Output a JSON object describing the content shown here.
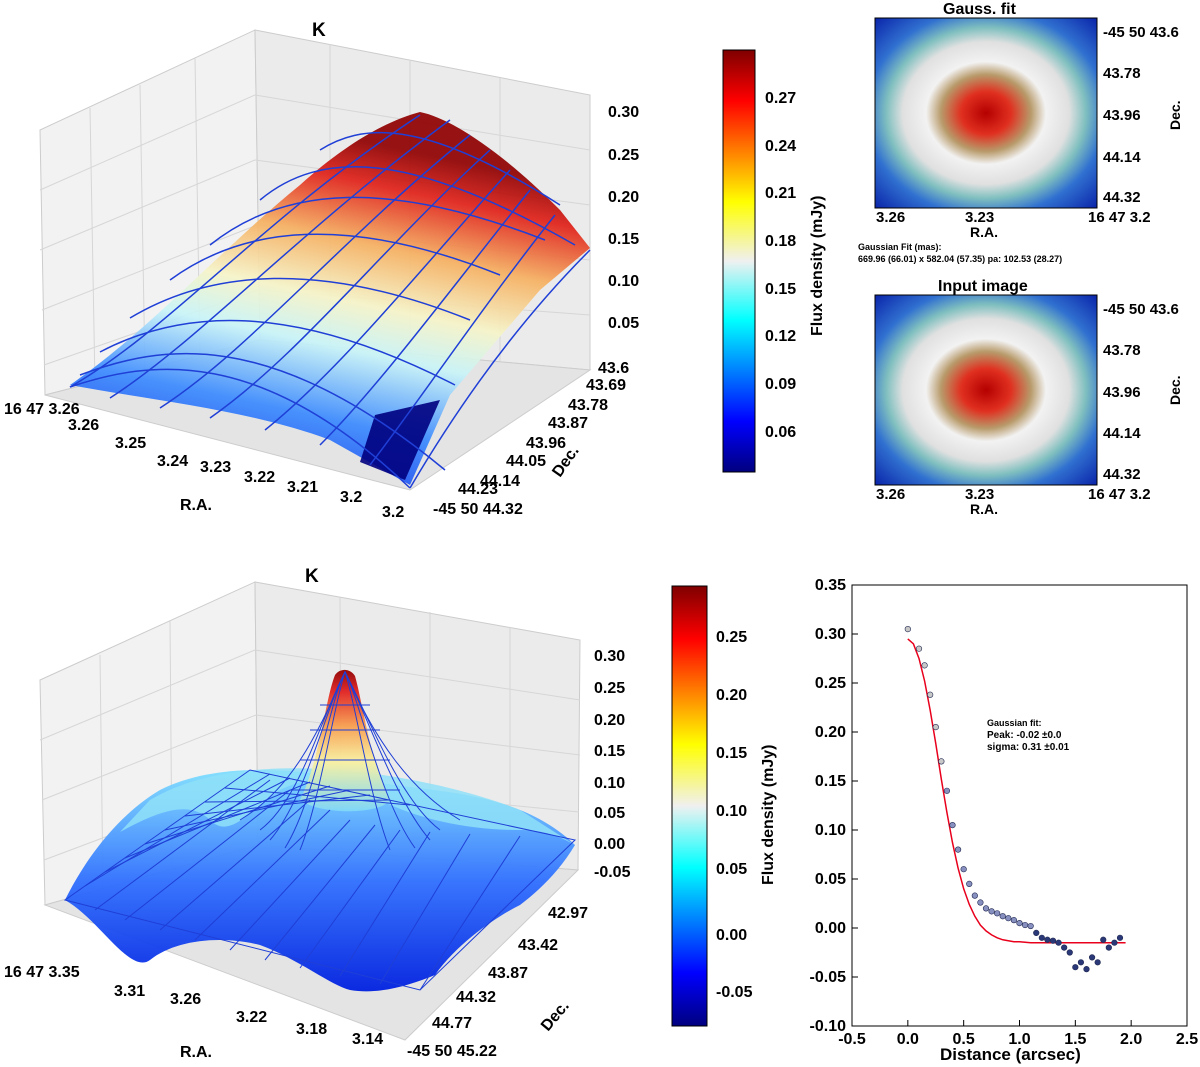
{
  "colors": {
    "jet": [
      "#00007f",
      "#0000ff",
      "#007fff",
      "#00ffff",
      "#7fff7f",
      "#ffff00",
      "#ff7f00",
      "#ff0000",
      "#7f0000"
    ],
    "wire": "#1f3fd6",
    "fit_line": "#e8001c",
    "points": "#3a4a8a"
  },
  "chart_data": [
    {
      "type": "surface3d",
      "title": "K",
      "xlabel": "R.A.",
      "ylabel": "Dec.",
      "zlabel": "",
      "x_ticks": [
        "16 47 3.26",
        "3.26",
        "3.25",
        "3.24",
        "3.23",
        "3.22",
        "3.21",
        "3.2",
        "3.2"
      ],
      "y_ticks": [
        "43.6",
        "43.69",
        "43.78",
        "43.87",
        "43.96",
        "44.05",
        "44.14",
        "44.23",
        "-45 50 44.32"
      ],
      "z_ticks": [
        "0.30",
        "0.25",
        "0.20",
        "0.15",
        "0.10",
        "0.05"
      ],
      "zlim": [
        0.0,
        0.31
      ],
      "description_of_surface": "broad single gaussian peak ~0.30 mJy with wireframe fit overlay"
    },
    {
      "type": "colorbar",
      "label": "Flux density (mJy)",
      "ticks": [
        "0.27",
        "0.24",
        "0.21",
        "0.18",
        "0.15",
        "0.12",
        "0.09",
        "0.06"
      ],
      "range": [
        0.035,
        0.3
      ]
    },
    {
      "type": "heatmap",
      "title": "Gauss. fit",
      "xlabel": "R.A.",
      "ylabel": "Dec.",
      "x_ticks": [
        "3.26",
        "3.23",
        "16 47 3.2"
      ],
      "y_ticks": [
        "-45 50 43.6",
        "43.78",
        "43.96",
        "44.14",
        "44.32"
      ],
      "annotation": [
        "Gaussian Fit (mas):",
        "669.96 (66.01) x 582.04 (57.35) pa: 102.53 (28.27)"
      ]
    },
    {
      "type": "heatmap",
      "title": "Input image",
      "xlabel": "R.A.",
      "ylabel": "Dec.",
      "x_ticks": [
        "3.26",
        "3.23",
        "16 47 3.2"
      ],
      "y_ticks": [
        "-45 50 43.6",
        "43.78",
        "43.96",
        "44.14",
        "44.32"
      ]
    },
    {
      "type": "surface3d",
      "title": "K",
      "xlabel": "R.A.",
      "ylabel": "Dec.",
      "x_ticks": [
        "16 47 3.35",
        "3.31",
        "3.26",
        "3.22",
        "3.18",
        "3.14"
      ],
      "y_ticks": [
        "42.97",
        "43.42",
        "43.87",
        "44.32",
        "44.77",
        "-45 50 45.22"
      ],
      "z_ticks": [
        "0.30",
        "0.25",
        "0.20",
        "0.15",
        "0.10",
        "0.05",
        "0.00",
        "-0.05"
      ],
      "zlim": [
        -0.08,
        0.31
      ],
      "description_of_surface": "narrow central peak ~0.30 mJy on wavy background near 0"
    },
    {
      "type": "colorbar",
      "label": "Flux density (mJy)",
      "ticks": [
        "0.25",
        "0.20",
        "0.15",
        "0.10",
        "0.05",
        "0.00",
        "-0.05"
      ],
      "range": [
        -0.085,
        0.295
      ]
    },
    {
      "type": "scatter",
      "title": "",
      "xlabel": "Distance (arcsec)",
      "ylabel": "",
      "xlim": [
        -0.5,
        2.5
      ],
      "ylim": [
        -0.1,
        0.35
      ],
      "x_ticks": [
        "-0.5",
        "0.0",
        "0.5",
        "1.0",
        "1.5",
        "2.0",
        "2.5"
      ],
      "y_ticks": [
        "0.35",
        "0.30",
        "0.25",
        "0.20",
        "0.15",
        "0.10",
        "0.05",
        "0.00",
        "-0.05",
        "-0.10"
      ],
      "x": [
        0.0,
        0.1,
        0.15,
        0.2,
        0.25,
        0.3,
        0.35,
        0.4,
        0.45,
        0.5,
        0.55,
        0.6,
        0.65,
        0.7,
        0.75,
        0.8,
        0.85,
        0.9,
        0.95,
        1.0,
        1.05,
        1.1,
        1.15,
        1.2,
        1.25,
        1.3,
        1.35,
        1.4,
        1.45,
        1.5,
        1.55,
        1.6,
        1.65,
        1.7,
        1.75,
        1.8,
        1.85,
        1.9
      ],
      "values": [
        0.305,
        0.285,
        0.268,
        0.238,
        0.205,
        0.17,
        0.14,
        0.105,
        0.08,
        0.06,
        0.045,
        0.033,
        0.026,
        0.02,
        0.017,
        0.015,
        0.012,
        0.01,
        0.008,
        0.005,
        0.003,
        0.002,
        -0.005,
        -0.01,
        -0.012,
        -0.013,
        -0.015,
        -0.02,
        -0.025,
        -0.04,
        -0.035,
        -0.042,
        -0.03,
        -0.035,
        -0.012,
        -0.02,
        -0.015,
        -0.01
      ],
      "fit": {
        "name": "Gaussian fit",
        "x": [
          0.0,
          0.05,
          0.1,
          0.15,
          0.2,
          0.25,
          0.3,
          0.35,
          0.4,
          0.45,
          0.5,
          0.55,
          0.6,
          0.65,
          0.7,
          0.75,
          0.8,
          0.85,
          0.9,
          0.95,
          1.0,
          1.1,
          1.2,
          1.4,
          1.6,
          1.8,
          1.95
        ],
        "values": [
          0.295,
          0.29,
          0.275,
          0.252,
          0.222,
          0.188,
          0.152,
          0.118,
          0.087,
          0.061,
          0.04,
          0.024,
          0.012,
          0.003,
          -0.003,
          -0.007,
          -0.01,
          -0.012,
          -0.013,
          -0.014,
          -0.014,
          -0.015,
          -0.015,
          -0.015,
          -0.015,
          -0.015,
          -0.015
        ]
      },
      "annotation": [
        "Gaussian fit:",
        "Peak: -0.02 ±0.0",
        "sigma: 0.31 ±0.01"
      ]
    }
  ]
}
